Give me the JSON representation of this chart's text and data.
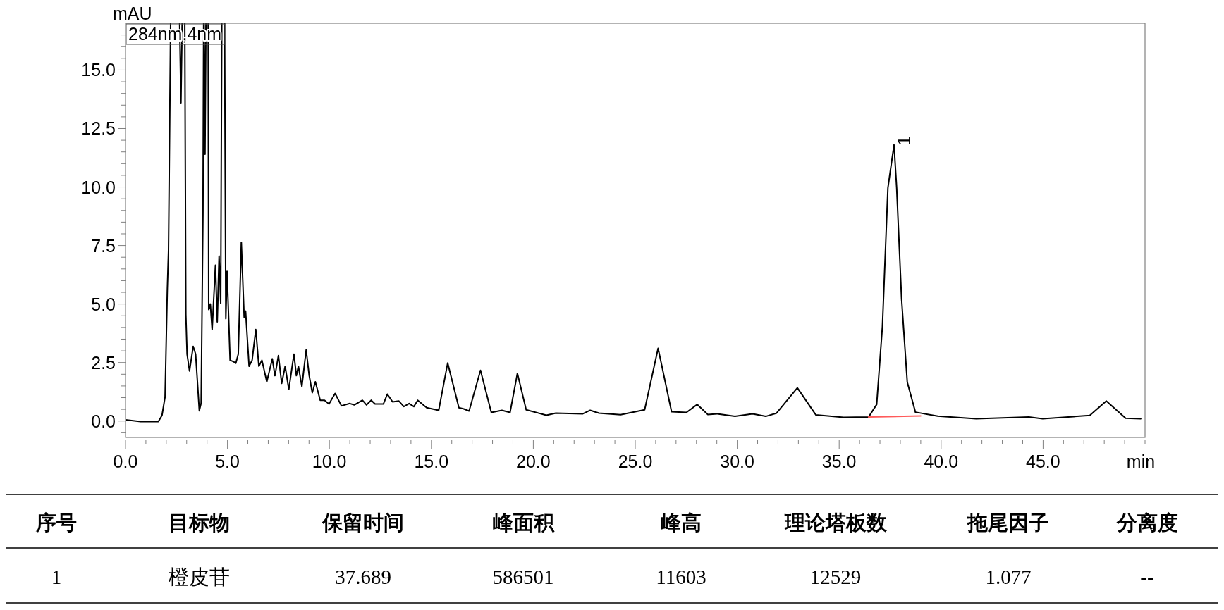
{
  "chart_data": [
    {
      "type": "line",
      "xlabel": "min",
      "ylabel": "mAU",
      "xlim": [
        0,
        50
      ],
      "ylim": [
        -0.7,
        17.0
      ],
      "xticks": [
        {
          "value": 0,
          "label": "0.0"
        },
        {
          "value": 1,
          "label": null
        },
        {
          "value": 2,
          "label": null
        },
        {
          "value": 3,
          "label": null
        },
        {
          "value": 4,
          "label": null
        },
        {
          "value": 5,
          "label": "5.0"
        },
        {
          "value": 6,
          "label": null
        },
        {
          "value": 7,
          "label": null
        },
        {
          "value": 8,
          "label": null
        },
        {
          "value": 9,
          "label": null
        },
        {
          "value": 10,
          "label": "10.0"
        },
        {
          "value": 11,
          "label": null
        },
        {
          "value": 12,
          "label": null
        },
        {
          "value": 13,
          "label": null
        },
        {
          "value": 14,
          "label": null
        },
        {
          "value": 15,
          "label": "15.0"
        },
        {
          "value": 16,
          "label": null
        },
        {
          "value": 17,
          "label": null
        },
        {
          "value": 18,
          "label": null
        },
        {
          "value": 19,
          "label": null
        },
        {
          "value": 20,
          "label": "20.0"
        },
        {
          "value": 21,
          "label": null
        },
        {
          "value": 22,
          "label": null
        },
        {
          "value": 23,
          "label": null
        },
        {
          "value": 24,
          "label": null
        },
        {
          "value": 25,
          "label": "25.0"
        },
        {
          "value": 26,
          "label": null
        },
        {
          "value": 27,
          "label": null
        },
        {
          "value": 28,
          "label": null
        },
        {
          "value": 29,
          "label": null
        },
        {
          "value": 30,
          "label": "30.0"
        },
        {
          "value": 31,
          "label": null
        },
        {
          "value": 32,
          "label": null
        },
        {
          "value": 33,
          "label": null
        },
        {
          "value": 34,
          "label": null
        },
        {
          "value": 35,
          "label": "35.0"
        },
        {
          "value": 36,
          "label": null
        },
        {
          "value": 37,
          "label": null
        },
        {
          "value": 38,
          "label": null
        },
        {
          "value": 39,
          "label": null
        },
        {
          "value": 40,
          "label": "40.0"
        },
        {
          "value": 41,
          "label": null
        },
        {
          "value": 42,
          "label": null
        },
        {
          "value": 43,
          "label": null
        },
        {
          "value": 44,
          "label": null
        },
        {
          "value": 45,
          "label": "45.0"
        },
        {
          "value": 46,
          "label": null
        },
        {
          "value": 47,
          "label": null
        },
        {
          "value": 48,
          "label": null
        },
        {
          "value": 49,
          "label": null
        },
        {
          "value": 50,
          "label": null
        }
      ],
      "yticks": [
        {
          "value": -0.5,
          "label": null
        },
        {
          "value": 0,
          "label": "0.0"
        },
        {
          "value": 0.5,
          "label": null
        },
        {
          "value": 1,
          "label": null
        },
        {
          "value": 1.5,
          "label": null
        },
        {
          "value": 2,
          "label": null
        },
        {
          "value": 2.5,
          "label": "2.5"
        },
        {
          "value": 3,
          "label": null
        },
        {
          "value": 3.5,
          "label": null
        },
        {
          "value": 4,
          "label": null
        },
        {
          "value": 4.5,
          "label": null
        },
        {
          "value": 5,
          "label": "5.0"
        },
        {
          "value": 5.5,
          "label": null
        },
        {
          "value": 6,
          "label": null
        },
        {
          "value": 6.5,
          "label": null
        },
        {
          "value": 7,
          "label": null
        },
        {
          "value": 7.5,
          "label": "7.5"
        },
        {
          "value": 8,
          "label": null
        },
        {
          "value": 8.5,
          "label": null
        },
        {
          "value": 9,
          "label": null
        },
        {
          "value": 9.5,
          "label": null
        },
        {
          "value": 10,
          "label": "10.0"
        },
        {
          "value": 10.5,
          "label": null
        },
        {
          "value": 11,
          "label": null
        },
        {
          "value": 11.5,
          "label": null
        },
        {
          "value": 12,
          "label": null
        },
        {
          "value": 12.5,
          "label": "12.5"
        },
        {
          "value": 13,
          "label": null
        },
        {
          "value": 13.5,
          "label": null
        },
        {
          "value": 14,
          "label": null
        },
        {
          "value": 14.5,
          "label": null
        },
        {
          "value": 15,
          "label": "15.0"
        },
        {
          "value": 15.5,
          "label": null
        },
        {
          "value": 16,
          "label": null
        },
        {
          "value": 16.5,
          "label": null
        }
      ],
      "annotations": [
        "284nm,4nm",
        {
          "text": "1",
          "x": 37.69,
          "y": 11.8
        }
      ],
      "series": [
        {
          "color": "#000000",
          "x": [
            0,
            0.74,
            1.61,
            1.79,
            1.94,
            2.05,
            2.11,
            2.2,
            2.23,
            2.62,
            2.72,
            2.81,
            2.9,
            2.96,
            3.02,
            3.14,
            3.32,
            3.44,
            3.62,
            3.71,
            3.8,
            3.84,
            3.9,
            3.96,
            4.05,
            4.08,
            4.16,
            4.25,
            4.41,
            4.5,
            4.59,
            4.67,
            4.73,
            4.85,
            4.92,
            4.98,
            5.13,
            5.31,
            5.41,
            5.53,
            5.68,
            5.82,
            5.89,
            6.06,
            6.21,
            6.39,
            6.54,
            6.69,
            6.93,
            7.2,
            7.33,
            7.5,
            7.66,
            7.83,
            8.01,
            8.26,
            8.38,
            8.48,
            8.65,
            8.86,
            9.01,
            9.16,
            9.31,
            9.55,
            9.76,
            9.98,
            10.28,
            10.59,
            11.0,
            11.22,
            11.62,
            11.82,
            12.05,
            12.24,
            12.65,
            12.84,
            13.1,
            13.4,
            13.65,
            13.91,
            14.14,
            14.33,
            14.77,
            15.36,
            15.8,
            16.35,
            16.59,
            16.85,
            17.41,
            17.94,
            18.46,
            18.86,
            19.22,
            19.65,
            20.64,
            21.1,
            22.43,
            22.79,
            23.22,
            24.28,
            25.46,
            26.12,
            26.78,
            27.51,
            28.04,
            28.56,
            29.02,
            29.89,
            30.75,
            31.4,
            31.93,
            32.95,
            33.86,
            35.22,
            36.44,
            36.84,
            37.12,
            37.39,
            37.69,
            37.82,
            38.06,
            38.34,
            38.74,
            39.83,
            41.72,
            44.3,
            44.98,
            47.29,
            48.1,
            49.05,
            49.79
          ],
          "values": [
            0.05,
            -0.02,
            -0.02,
            0.24,
            1.03,
            5.6,
            7.3,
            15.7,
            null,
            null,
            13.6,
            null,
            null,
            4.56,
            2.86,
            2.14,
            3.19,
            2.86,
            0.44,
            0.77,
            8.9,
            null,
            11.4,
            null,
            null,
            4.76,
            5.0,
            3.91,
            6.66,
            4.24,
            7.05,
            5.02,
            null,
            null,
            4.37,
            6.4,
            2.6,
            2.53,
            2.47,
            2.86,
            7.64,
            4.43,
            4.7,
            2.34,
            2.6,
            3.91,
            2.34,
            2.6,
            1.68,
            2.66,
            1.94,
            2.8,
            1.61,
            2.34,
            1.35,
            2.86,
            1.94,
            2.34,
            1.48,
            3.04,
            1.94,
            1.21,
            1.68,
            0.89,
            0.89,
            0.73,
            1.18,
            0.65,
            0.75,
            0.69,
            0.89,
            0.69,
            0.89,
            0.73,
            0.73,
            1.15,
            0.82,
            0.86,
            0.62,
            0.75,
            0.62,
            0.89,
            0.57,
            0.46,
            2.48,
            0.57,
            0.52,
            0.43,
            2.17,
            0.37,
            0.46,
            0.37,
            2.04,
            0.48,
            0.25,
            0.34,
            0.31,
            0.46,
            0.34,
            0.27,
            0.48,
            3.11,
            0.4,
            0.37,
            0.71,
            0.28,
            0.31,
            0.2,
            0.31,
            0.2,
            0.34,
            1.42,
            0.26,
            0.16,
            0.17,
            0.71,
            4.04,
            9.96,
            11.8,
            9.96,
            5.22,
            1.66,
            0.38,
            0.21,
            0.1,
            0.17,
            0.1,
            0.24,
            0.86,
            0.12,
            0.1
          ]
        },
        {
          "color": "#ff5a5a",
          "x": [
            36.44,
            39.0
          ],
          "values": [
            0.17,
            0.22
          ]
        }
      ]
    },
    {
      "type": "other",
      "annotations": [
        "序号",
        "目标物",
        "保留时间",
        "峰面积",
        "峰高",
        "理论塔板数",
        "拖尾因子",
        "分离度",
        "1",
        "橙皮苷",
        "37.689",
        "586501",
        "11603",
        "12529",
        "1.077",
        "--"
      ]
    }
  ]
}
